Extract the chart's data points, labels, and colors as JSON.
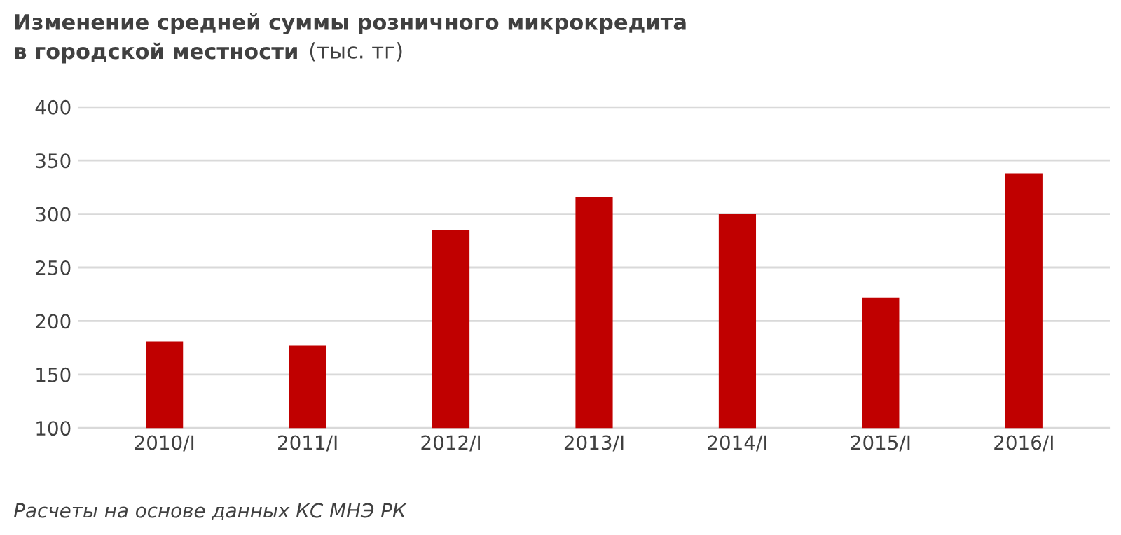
{
  "chart_data": {
    "type": "bar",
    "title": "Изменение средней суммы розничного микрокредита\nв городской местности",
    "subtitle": "(тыс. тг)",
    "categories": [
      "2010/I",
      "2011/I",
      "2012/I",
      "2013/I",
      "2014/I",
      "2015/I",
      "2016/I"
    ],
    "values": [
      181,
      177,
      285,
      316,
      300,
      222,
      338
    ],
    "color": "#c00000",
    "ylim": [
      100,
      400
    ],
    "yticks": [
      100,
      150,
      200,
      250,
      300,
      350,
      400
    ],
    "grid": "y",
    "annotations": [
      "Расчеты на основе данных КС МНЭ РК"
    ]
  }
}
